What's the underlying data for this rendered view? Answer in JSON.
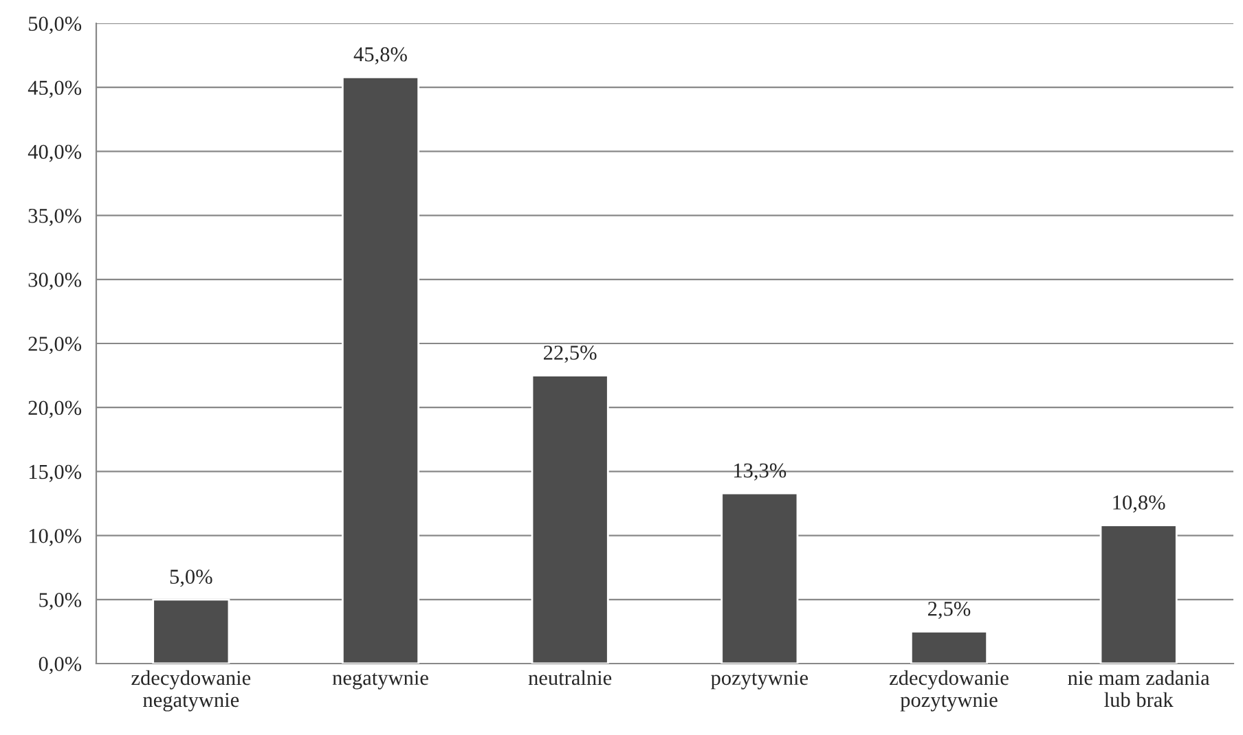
{
  "chart_data": {
    "type": "bar",
    "categories": [
      "zdecydowanie\nnegatywnie",
      "negatywnie",
      "neutralnie",
      "pozytywnie",
      "zdecydowanie\npozytywnie",
      "nie mam zadania\nlub brak"
    ],
    "values": [
      5.0,
      45.8,
      22.5,
      13.3,
      2.5,
      10.8
    ],
    "value_labels": [
      "5,0%",
      "45,8%",
      "22,5%",
      "13,3%",
      "2,5%",
      "10,8%"
    ],
    "color": "#4d4d4d",
    "ylim": [
      0,
      50
    ],
    "yticks": [
      {
        "value": 0,
        "label": "0,0%"
      },
      {
        "value": 5,
        "label": "5,0%"
      },
      {
        "value": 10,
        "label": "10,0%"
      },
      {
        "value": 15,
        "label": "15,0%"
      },
      {
        "value": 20,
        "label": "20,0%"
      },
      {
        "value": 25,
        "label": "25,0%"
      },
      {
        "value": 30,
        "label": "30,0%"
      },
      {
        "value": 35,
        "label": "35,0%"
      },
      {
        "value": 40,
        "label": "40,0%"
      },
      {
        "value": 45,
        "label": "45,0%"
      },
      {
        "value": 50,
        "label": "50,0%"
      }
    ],
    "grid": "y",
    "legend": false
  }
}
